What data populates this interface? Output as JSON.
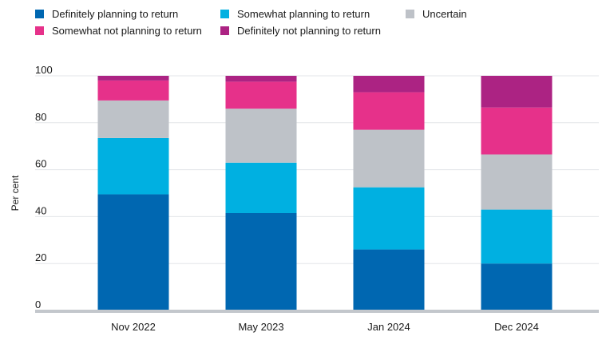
{
  "chart_data": {
    "type": "bar",
    "stacked": true,
    "categories": [
      "Nov 2022",
      "May 2023",
      "Jan 2024",
      "Dec 2024"
    ],
    "series": [
      {
        "name": "Definitely planning to return",
        "color": "#0067b1",
        "values": [
          49.5,
          41.5,
          26,
          20
        ]
      },
      {
        "name": "Somewhat planning to return",
        "color": "#00b0e1",
        "values": [
          24,
          21.5,
          26.5,
          23
        ]
      },
      {
        "name": "Uncertain",
        "color": "#bec2c8",
        "values": [
          16,
          23,
          24.5,
          23.5
        ]
      },
      {
        "name": "Somewhat not planning to return",
        "color": "#e6318a",
        "values": [
          8.5,
          11.5,
          16,
          20
        ]
      },
      {
        "name": "Definitely not planning to return",
        "color": "#ac2383",
        "values": [
          2,
          2.5,
          7,
          13.5
        ]
      }
    ],
    "ylabel": "Per cent",
    "ylim": [
      0,
      100
    ],
    "yticks": [
      0,
      20,
      40,
      60,
      80,
      100
    ],
    "grid": true,
    "legend_position": "top"
  }
}
